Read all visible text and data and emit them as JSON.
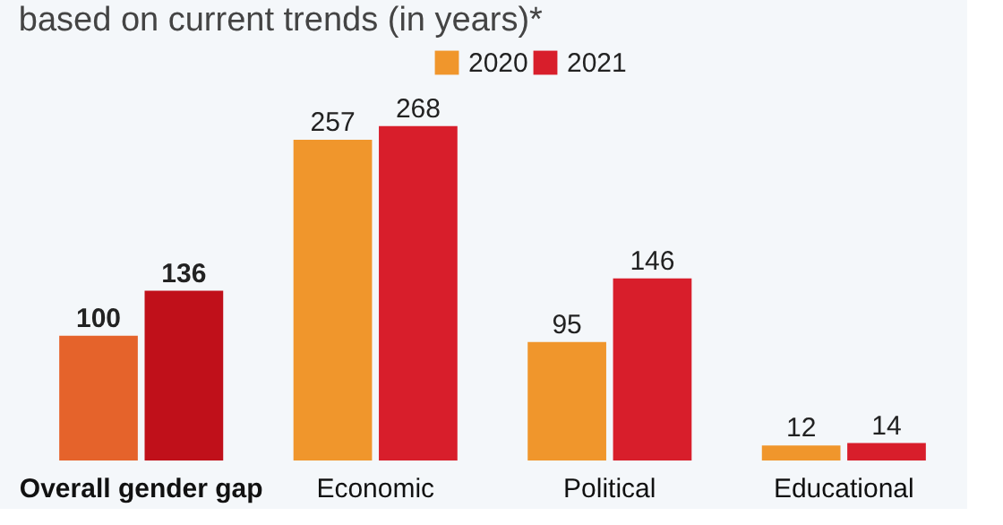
{
  "chart_data": {
    "type": "bar",
    "title": "based on current trends (in years)*",
    "categories": [
      "Overall gender gap",
      "Economic",
      "Political",
      "Educational"
    ],
    "series": [
      {
        "name": "2020",
        "color": "#f0962c",
        "colors": [
          "#e5632b",
          "#f0962c",
          "#f0962c",
          "#f0962c"
        ],
        "values": [
          100,
          257,
          95,
          12
        ]
      },
      {
        "name": "2021",
        "color": "#d81e2b",
        "colors": [
          "#c0101a",
          "#d81e2b",
          "#d81e2b",
          "#d81e2b"
        ],
        "values": [
          136,
          268,
          146,
          14
        ]
      }
    ],
    "data_labels": true,
    "legend": "top",
    "grid": false
  }
}
